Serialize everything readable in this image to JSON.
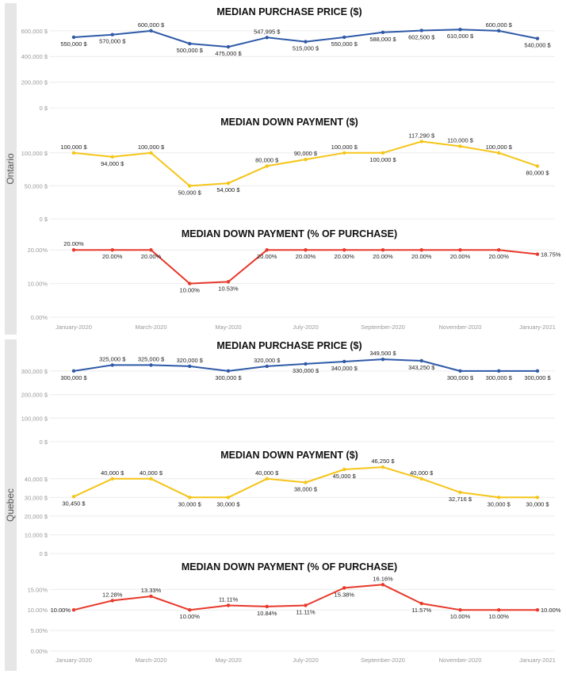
{
  "regions": [
    {
      "name": "Ontario"
    },
    {
      "name": "Quebec"
    }
  ],
  "x_axis_labels": [
    "January-2020",
    "March-2020",
    "May-2020",
    "July-2020",
    "September-2020",
    "November-2020",
    "January-2021"
  ],
  "chart_data": [
    {
      "type": "line",
      "region": "Ontario",
      "title": "MEDIAN PURCHASE PRICE ($)",
      "color": "#2f5aa8",
      "categories": [
        "Jan-2020",
        "Feb-2020",
        "Mar-2020",
        "Apr-2020",
        "May-2020",
        "Jun-2020",
        "Jul-2020",
        "Aug-2020",
        "Sep-2020",
        "Oct-2020",
        "Nov-2020",
        "Dec-2020",
        "Jan-2021"
      ],
      "values": [
        550000,
        570000,
        600000,
        500000,
        475000,
        547995,
        515000,
        550000,
        588000,
        602500,
        610000,
        600000,
        540000
      ],
      "labels": [
        "550,000 $",
        "570,000 $",
        "600,000 $",
        "500,000 $",
        "475,000 $",
        "547,995 $",
        "515,000 $",
        "550,000 $",
        "588,000 $",
        "602,500 $",
        "610,000 $",
        "600,000 $",
        "540,000 $"
      ],
      "yticks": [
        "600,000 $",
        "400,000 $",
        "200,000 $",
        "0 $"
      ],
      "ytick_values": [
        600000,
        400000,
        200000,
        0
      ],
      "ylim": [
        0,
        630000
      ],
      "grid": true,
      "show_x_axis": false
    },
    {
      "type": "line",
      "region": "Ontario",
      "title": "MEDIAN DOWN PAYMENT ($)",
      "color": "#f5c518",
      "categories": [
        "Jan-2020",
        "Feb-2020",
        "Mar-2020",
        "Apr-2020",
        "May-2020",
        "Jun-2020",
        "Jul-2020",
        "Aug-2020",
        "Sep-2020",
        "Oct-2020",
        "Nov-2020",
        "Dec-2020",
        "Jan-2021"
      ],
      "values": [
        100000,
        94000,
        100000,
        50000,
        54000,
        80000,
        90000,
        100000,
        100000,
        117290,
        110000,
        100000,
        80000
      ],
      "labels": [
        "100,000 $",
        "94,000 $",
        "100,000 $",
        "50,000 $",
        "54,000 $",
        "80,000 $",
        "90,000 $",
        "100,000 $",
        "100,000 $",
        "117,290 $",
        "110,000 $",
        "100,000 $",
        "80,000 $"
      ],
      "yticks": [
        "100,000 $",
        "50,000 $",
        "0 $"
      ],
      "ytick_values": [
        100000,
        50000,
        0
      ],
      "ylim": [
        0,
        125000
      ],
      "grid": true,
      "show_x_axis": false
    },
    {
      "type": "line",
      "region": "Ontario",
      "title": "MEDIAN DOWN PAYMENT (% OF PURCHASE)",
      "color": "#e8382a",
      "categories": [
        "Jan-2020",
        "Feb-2020",
        "Mar-2020",
        "Apr-2020",
        "May-2020",
        "Jun-2020",
        "Jul-2020",
        "Aug-2020",
        "Sep-2020",
        "Oct-2020",
        "Nov-2020",
        "Dec-2020",
        "Jan-2021"
      ],
      "values": [
        20.0,
        20.0,
        20.0,
        10.0,
        10.53,
        20.0,
        20.0,
        20.0,
        20.0,
        20.0,
        20.0,
        20.0,
        18.75
      ],
      "labels": [
        "20.00%",
        "20.00%",
        "20.00%",
        "10.00%",
        "10.53%",
        "20.00%",
        "20.00%",
        "20.00%",
        "20.00%",
        "20.00%",
        "20.00%",
        "20.00%",
        "18.75%"
      ],
      "yticks": [
        "20.00%",
        "10.00%",
        "0.00%"
      ],
      "ytick_values": [
        20,
        10,
        0
      ],
      "ylim": [
        0,
        21
      ],
      "grid": true,
      "show_x_axis": true
    },
    {
      "type": "line",
      "region": "Quebec",
      "title": "MEDIAN PURCHASE PRICE ($)",
      "color": "#2f5aa8",
      "categories": [
        "Jan-2020",
        "Feb-2020",
        "Mar-2020",
        "Apr-2020",
        "May-2020",
        "Jun-2020",
        "Jul-2020",
        "Aug-2020",
        "Sep-2020",
        "Oct-2020",
        "Nov-2020",
        "Dec-2020",
        "Jan-2021"
      ],
      "values": [
        300000,
        325000,
        325000,
        320000,
        300000,
        320000,
        330000,
        340000,
        349500,
        343250,
        300000,
        300000,
        300000
      ],
      "labels": [
        "300,000 $",
        "325,000 $",
        "325,000 $",
        "320,000 $",
        "300,000 $",
        "320,000 $",
        "330,000 $",
        "340,000 $",
        "349,500 $",
        "343,250 $",
        "300,000 $",
        "300,000 $",
        "300,000 $"
      ],
      "yticks": [
        "300,000 $",
        "200,000 $",
        "100,000 $",
        "0 $"
      ],
      "ytick_values": [
        300000,
        200000,
        100000,
        0
      ],
      "ylim": [
        0,
        350000
      ],
      "grid": true,
      "show_x_axis": false
    },
    {
      "type": "line",
      "region": "Quebec",
      "title": "MEDIAN DOWN PAYMENT ($)",
      "color": "#f5c518",
      "categories": [
        "Jan-2020",
        "Feb-2020",
        "Mar-2020",
        "Apr-2020",
        "May-2020",
        "Jun-2020",
        "Jul-2020",
        "Aug-2020",
        "Sep-2020",
        "Oct-2020",
        "Nov-2020",
        "Dec-2020",
        "Jan-2021"
      ],
      "values": [
        30450,
        40000,
        40000,
        30000,
        30000,
        40000,
        38000,
        45000,
        46250,
        40000,
        32716,
        30000,
        30000
      ],
      "labels": [
        "30,450 $",
        "40,000 $",
        "40,000 $",
        "30,000 $",
        "30,000 $",
        "40,000 $",
        "38,000 $",
        "45,000 $",
        "46,250 $",
        "40,000 $",
        "32,716 $",
        "30,000 $",
        "30,000 $"
      ],
      "yticks": [
        "40,000 $",
        "30,000 $",
        "20,000 $",
        "10,000 $",
        "0 $"
      ],
      "ytick_values": [
        40000,
        30000,
        20000,
        10000,
        0
      ],
      "ylim": [
        0,
        45000
      ],
      "grid": true,
      "show_x_axis": false
    },
    {
      "type": "line",
      "region": "Quebec",
      "title": "MEDIAN DOWN PAYMENT (% OF PURCHASE)",
      "color": "#e8382a",
      "categories": [
        "Jan-2020",
        "Feb-2020",
        "Mar-2020",
        "Apr-2020",
        "May-2020",
        "Jun-2020",
        "Jul-2020",
        "Aug-2020",
        "Sep-2020",
        "Oct-2020",
        "Nov-2020",
        "Dec-2020",
        "Jan-2021"
      ],
      "values": [
        10.0,
        12.28,
        13.33,
        10.0,
        11.11,
        10.84,
        11.11,
        15.38,
        16.16,
        11.57,
        10.0,
        10.0,
        10.0
      ],
      "labels": [
        "10.00%",
        "12.28%",
        "13.33%",
        "10.00%",
        "11.11%",
        "10.84%",
        "11.11%",
        "15.38%",
        "16.16%",
        "11.57%",
        "10.00%",
        "10.00%",
        "10.00%"
      ],
      "yticks": [
        "15.00%",
        "10.00%",
        "5.00%",
        "0.00%"
      ],
      "ytick_values": [
        15,
        10,
        5,
        0
      ],
      "ylim": [
        0,
        17
      ],
      "grid": true,
      "show_x_axis": true
    }
  ]
}
